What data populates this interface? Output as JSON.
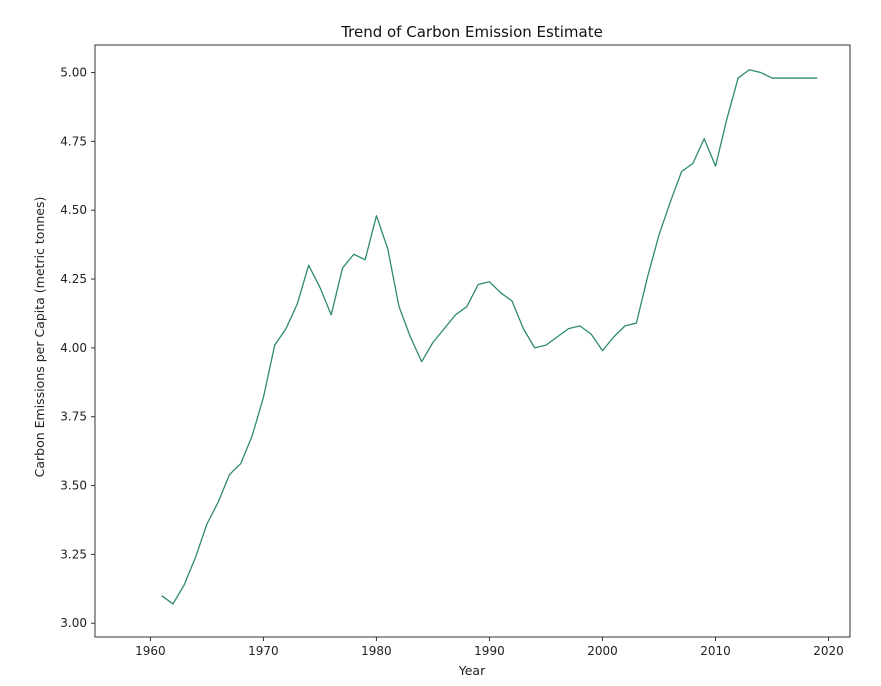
{
  "chart_data": {
    "type": "line",
    "title": "Trend of Carbon Emission Estimate",
    "xlabel": "Year",
    "ylabel": "Carbon Emissions per Capita (metric tonnes)",
    "xlim": [
      1955.1,
      2021.9
    ],
    "ylim": [
      2.95,
      5.1
    ],
    "xticks": [
      1960,
      1970,
      1980,
      1990,
      2000,
      2010,
      2020
    ],
    "xtick_labels": [
      "1960",
      "1970",
      "1980",
      "1990",
      "2000",
      "2010",
      "2020"
    ],
    "yticks": [
      3.0,
      3.25,
      3.5,
      3.75,
      4.0,
      4.25,
      4.5,
      4.75,
      5.0
    ],
    "ytick_labels": [
      "3.00",
      "3.25",
      "3.50",
      "3.75",
      "4.00",
      "4.25",
      "4.50",
      "4.75",
      "5.00"
    ],
    "grid": false,
    "line_color": "#2e8b6a",
    "series": [
      {
        "x": [
          1961,
          1962,
          1963,
          1964,
          1965,
          1966,
          1967,
          1968,
          1969,
          1970,
          1971,
          1972,
          1973,
          1974,
          1975,
          1976,
          1977,
          1978,
          1979,
          1980,
          1981,
          1982,
          1983,
          1984,
          1985,
          1986,
          1987,
          1988,
          1989,
          1990,
          1991,
          1992,
          1993,
          1994,
          1995,
          1996,
          1997,
          1998,
          1999,
          2000,
          2001,
          2002,
          2003,
          2004,
          2005,
          2006,
          2007,
          2008,
          2009,
          2010,
          2011,
          2012,
          2013,
          2014,
          2015,
          2016,
          2017,
          2018,
          2019
        ],
        "values": [
          3.1,
          3.07,
          3.14,
          3.24,
          3.36,
          3.44,
          3.54,
          3.58,
          3.68,
          3.82,
          4.01,
          4.07,
          4.16,
          4.3,
          4.22,
          4.12,
          4.29,
          4.34,
          4.32,
          4.48,
          4.36,
          4.15,
          4.04,
          3.95,
          4.02,
          4.07,
          4.12,
          4.15,
          4.23,
          4.24,
          4.2,
          4.17,
          4.07,
          4.0,
          4.01,
          4.04,
          4.07,
          4.08,
          4.05,
          3.99,
          4.04,
          4.08,
          4.09,
          4.26,
          4.41,
          4.53,
          4.64,
          4.67,
          4.76,
          4.66,
          4.83,
          4.98,
          5.01,
          5.0,
          4.98,
          4.98,
          4.98,
          4.98,
          4.98
        ]
      }
    ]
  }
}
